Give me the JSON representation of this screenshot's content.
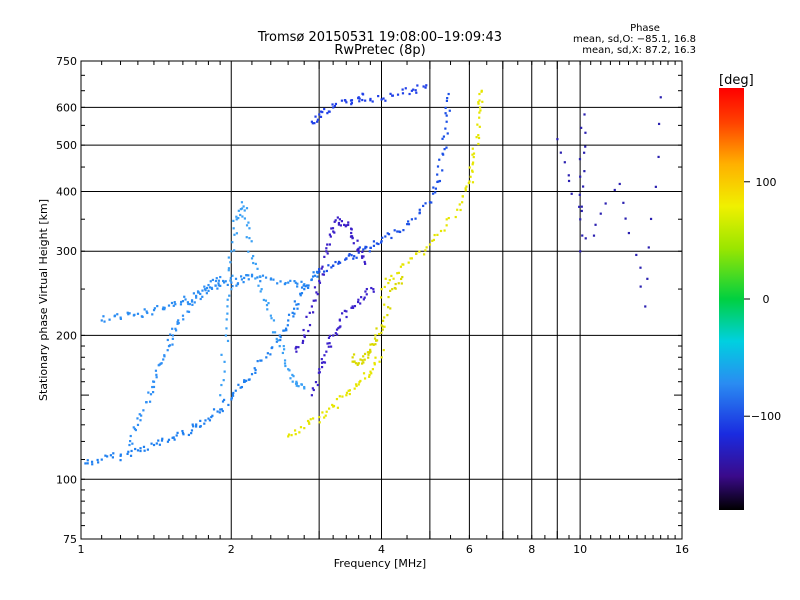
{
  "chart_data": {
    "type": "scatter",
    "title": "Tromsø 20150531 19:08:00–19:09:43",
    "subtitle": "RwPretec (8p)",
    "xlabel": "Frequency [MHz]",
    "ylabel": "Stationary phase Virtual Height [km]",
    "x_scale": "log",
    "y_scale": "log",
    "xlim": [
      1,
      16
    ],
    "ylim": [
      75,
      750
    ],
    "x_ticks": [
      1,
      2,
      4,
      6,
      8,
      10,
      16
    ],
    "x_tick_labels": [
      "1",
      "2",
      "4",
      "6",
      "8",
      "10",
      "16"
    ],
    "x_minor": [
      3,
      5,
      7,
      9
    ],
    "y_ticks": [
      75,
      100,
      200,
      300,
      400,
      500,
      600,
      750
    ],
    "y_tick_labels": [
      "75",
      "100",
      "200",
      "300",
      "400",
      "500",
      "600",
      "750"
    ],
    "y_minor": [
      150
    ],
    "grid": true,
    "phase_legend": {
      "title": "Phase",
      "line_o": "mean, sd,O: −85.1, 16.8",
      "line_x": "mean, sd,X: 87.2, 16.3"
    },
    "colorbar": {
      "label": "[deg]",
      "range": [
        -180,
        180
      ],
      "ticks": [
        100,
        0,
        -100
      ],
      "tick_labels": [
        "100",
        "0",
        "−100"
      ]
    },
    "series": [
      {
        "phase": -100,
        "color": "#1e7ff0",
        "points": [
          [
            1.02,
            108
          ],
          [
            1.1,
            110
          ],
          [
            1.2,
            112
          ],
          [
            1.3,
            115
          ],
          [
            1.4,
            118
          ],
          [
            1.5,
            121
          ],
          [
            1.6,
            125
          ],
          [
            1.7,
            129
          ],
          [
            1.8,
            134
          ],
          [
            1.9,
            140
          ],
          [
            2.0,
            147
          ],
          [
            2.1,
            156
          ],
          [
            2.2,
            166
          ],
          [
            2.35,
            180
          ],
          [
            2.5,
            200
          ],
          [
            2.6,
            215
          ],
          [
            2.7,
            232
          ],
          [
            2.8,
            250
          ],
          [
            2.9,
            262
          ],
          [
            3.0,
            272
          ]
        ]
      },
      {
        "phase": -100,
        "color": "#2a8cf2",
        "points": [
          [
            1.1,
            215
          ],
          [
            1.2,
            218
          ],
          [
            1.3,
            222
          ],
          [
            1.4,
            226
          ],
          [
            1.5,
            231
          ],
          [
            1.6,
            236
          ],
          [
            1.7,
            242
          ],
          [
            1.8,
            248
          ],
          [
            1.9,
            254
          ],
          [
            2.0,
            258
          ],
          [
            2.1,
            262
          ],
          [
            2.2,
            266
          ],
          [
            2.4,
            262
          ],
          [
            2.6,
            258
          ],
          [
            2.8,
            256
          ]
        ]
      },
      {
        "phase": -100,
        "color": "#2f8ff5",
        "points": [
          [
            1.25,
            118
          ],
          [
            1.3,
            130
          ],
          [
            1.35,
            145
          ],
          [
            1.4,
            160
          ],
          [
            1.45,
            175
          ],
          [
            1.5,
            190
          ],
          [
            1.55,
            205
          ],
          [
            1.6,
            220
          ],
          [
            1.7,
            240
          ],
          [
            1.8,
            255
          ],
          [
            1.9,
            265
          ]
        ]
      },
      {
        "phase": -100,
        "color": "#3aa0f5",
        "points": [
          [
            1.9,
            150
          ],
          [
            1.95,
            200
          ],
          [
            2.0,
            250
          ],
          [
            2.0,
            300
          ],
          [
            2.05,
            350
          ],
          [
            2.1,
            380
          ],
          [
            2.15,
            340
          ],
          [
            2.2,
            290
          ],
          [
            2.3,
            250
          ],
          [
            2.4,
            220
          ],
          [
            2.5,
            190
          ],
          [
            2.6,
            170
          ],
          [
            2.7,
            160
          ],
          [
            2.8,
            155
          ]
        ]
      },
      {
        "phase": -110,
        "color": "#1a4fe6",
        "points": [
          [
            3.0,
            272
          ],
          [
            3.2,
            280
          ],
          [
            3.4,
            290
          ],
          [
            3.6,
            298
          ],
          [
            3.8,
            305
          ],
          [
            4.0,
            315
          ],
          [
            4.3,
            330
          ],
          [
            4.6,
            350
          ],
          [
            5.0,
            380
          ],
          [
            5.2,
            420
          ],
          [
            5.3,
            480
          ],
          [
            5.4,
            560
          ],
          [
            5.45,
            640
          ]
        ]
      },
      {
        "phase": -110,
        "color": "#2040e8",
        "points": [
          [
            2.9,
            560
          ],
          [
            3.0,
            580
          ],
          [
            3.2,
            600
          ],
          [
            3.4,
            615
          ],
          [
            3.6,
            630
          ],
          [
            3.8,
            625
          ],
          [
            4.2,
            635
          ],
          [
            4.6,
            650
          ],
          [
            4.9,
            660
          ]
        ]
      },
      {
        "phase": -120,
        "color": "#3a1ec8",
        "points": [
          [
            2.7,
            185
          ],
          [
            2.8,
            200
          ],
          [
            2.9,
            230
          ],
          [
            3.0,
            260
          ],
          [
            3.1,
            300
          ],
          [
            3.2,
            330
          ],
          [
            3.3,
            350
          ],
          [
            3.4,
            340
          ],
          [
            3.5,
            320
          ],
          [
            3.6,
            300
          ],
          [
            3.7,
            285
          ]
        ]
      },
      {
        "phase": -120,
        "color": "#3c22cc",
        "points": [
          [
            2.9,
            150
          ],
          [
            3.0,
            170
          ],
          [
            3.1,
            185
          ],
          [
            3.2,
            200
          ],
          [
            3.3,
            215
          ],
          [
            3.5,
            230
          ],
          [
            3.7,
            240
          ],
          [
            3.85,
            250
          ]
        ]
      },
      {
        "phase": 95,
        "color": "#e6e600",
        "points": [
          [
            2.6,
            123
          ],
          [
            2.8,
            128
          ],
          [
            3.0,
            135
          ],
          [
            3.2,
            142
          ],
          [
            3.4,
            150
          ],
          [
            3.6,
            158
          ],
          [
            3.8,
            168
          ],
          [
            4.0,
            180
          ],
          [
            4.0,
            250
          ],
          [
            4.3,
            270
          ],
          [
            4.6,
            290
          ],
          [
            5.0,
            310
          ],
          [
            5.4,
            340
          ],
          [
            5.8,
            380
          ],
          [
            6.0,
            420
          ],
          [
            6.1,
            460
          ],
          [
            6.2,
            520
          ],
          [
            6.3,
            600
          ],
          [
            6.35,
            650
          ]
        ]
      },
      {
        "phase": 105,
        "color": "#d9d900",
        "points": [
          [
            3.5,
            180
          ],
          [
            3.6,
            175
          ],
          [
            3.7,
            178
          ],
          [
            3.8,
            185
          ],
          [
            3.9,
            195
          ],
          [
            4.0,
            210
          ],
          [
            4.2,
            250
          ],
          [
            4.4,
            265
          ]
        ]
      },
      {
        "phase": -130,
        "color": "#2a20b0",
        "points": [
          [
            9.0,
            515
          ],
          [
            10.0,
            350
          ],
          [
            10.2,
            580
          ],
          [
            10.0,
            300
          ],
          [
            12.0,
            415
          ],
          [
            13.5,
            230
          ],
          [
            14.5,
            630
          ]
        ]
      }
    ]
  }
}
